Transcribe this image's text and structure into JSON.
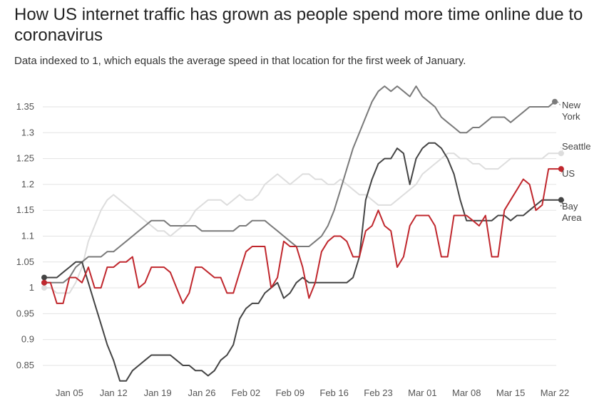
{
  "title": "How US internet traffic has grown as people spend more time online due to coronavirus",
  "subtitle": "Data indexed to 1, which equals the average speed in that location for the first week of January.",
  "chart_data": {
    "type": "line",
    "title": "How US internet traffic has grown as people spend more time online due to coronavirus",
    "subtitle": "Data indexed to 1, which equals the average speed in that location for the first week of January.",
    "xlabel": "",
    "ylabel": "",
    "x_start": "Jan 01",
    "x_end": "Mar 23",
    "xlim": [
      0,
      82
    ],
    "ylim": [
      0.8,
      1.4
    ],
    "grid": true,
    "legend": "direct labels at line ends (right)",
    "x_ticks": [
      {
        "day": 4,
        "label": "Jan 05"
      },
      {
        "day": 11,
        "label": "Jan 12"
      },
      {
        "day": 18,
        "label": "Jan 19"
      },
      {
        "day": 25,
        "label": "Jan 26"
      },
      {
        "day": 32,
        "label": "Feb 02"
      },
      {
        "day": 39,
        "label": "Feb 09"
      },
      {
        "day": 46,
        "label": "Feb 16"
      },
      {
        "day": 53,
        "label": "Feb 23"
      },
      {
        "day": 60,
        "label": "Mar 01"
      },
      {
        "day": 67,
        "label": "Mar 08"
      },
      {
        "day": 74,
        "label": "Mar 15"
      },
      {
        "day": 81,
        "label": "Mar 22"
      }
    ],
    "y_ticks": [
      {
        "value": 0.85,
        "label": "0.85"
      },
      {
        "value": 0.9,
        "label": "0.9"
      },
      {
        "value": 0.95,
        "label": "0.95"
      },
      {
        "value": 1.0,
        "label": "1"
      },
      {
        "value": 1.05,
        "label": "1.05"
      },
      {
        "value": 1.1,
        "label": "1.1"
      },
      {
        "value": 1.15,
        "label": "1.15"
      },
      {
        "value": 1.2,
        "label": "1.2"
      },
      {
        "value": 1.25,
        "label": "1.25"
      },
      {
        "value": 1.3,
        "label": "1.3"
      },
      {
        "value": 1.35,
        "label": "1.35"
      }
    ],
    "series": [
      {
        "name": "Seattle",
        "label_lines": [
          "Seattle"
        ],
        "color": "#dddddd",
        "x": [
          0,
          1,
          2,
          3,
          4,
          5,
          6,
          7,
          8,
          9,
          10,
          11,
          12,
          13,
          14,
          15,
          16,
          17,
          18,
          19,
          20,
          21,
          22,
          23,
          24,
          25,
          26,
          27,
          28,
          29,
          30,
          31,
          32,
          33,
          34,
          35,
          36,
          37,
          38,
          39,
          40,
          41,
          42,
          43,
          44,
          45,
          46,
          47,
          48,
          49,
          50,
          51,
          52,
          53,
          54,
          55,
          56,
          57,
          58,
          59,
          60,
          61,
          62,
          63,
          64,
          65,
          66,
          67,
          68,
          69,
          70,
          71,
          72,
          73,
          74,
          75,
          76,
          77,
          78,
          79,
          80,
          81,
          82
        ],
        "values": [
          1.0,
          1.0,
          0.99,
          0.99,
          0.99,
          1.01,
          1.04,
          1.09,
          1.12,
          1.15,
          1.17,
          1.18,
          1.17,
          1.16,
          1.15,
          1.14,
          1.13,
          1.12,
          1.11,
          1.11,
          1.1,
          1.11,
          1.12,
          1.13,
          1.15,
          1.16,
          1.17,
          1.17,
          1.17,
          1.16,
          1.17,
          1.18,
          1.17,
          1.17,
          1.18,
          1.2,
          1.21,
          1.22,
          1.21,
          1.2,
          1.21,
          1.22,
          1.22,
          1.21,
          1.21,
          1.2,
          1.2,
          1.21,
          1.2,
          1.19,
          1.18,
          1.18,
          1.17,
          1.16,
          1.16,
          1.16,
          1.17,
          1.18,
          1.19,
          1.2,
          1.22,
          1.23,
          1.24,
          1.25,
          1.26,
          1.26,
          1.25,
          1.25,
          1.24,
          1.24,
          1.23,
          1.23,
          1.23,
          1.24,
          1.25,
          1.25,
          1.25,
          1.25,
          1.25,
          1.25,
          1.26,
          1.26,
          1.26
        ]
      },
      {
        "name": "New York",
        "label_lines": [
          "New",
          "York"
        ],
        "color": "#7a7a7a",
        "x": [
          0,
          1,
          2,
          3,
          4,
          5,
          6,
          7,
          8,
          9,
          10,
          11,
          12,
          13,
          14,
          15,
          16,
          17,
          18,
          19,
          20,
          21,
          22,
          23,
          24,
          25,
          26,
          27,
          28,
          29,
          30,
          31,
          32,
          33,
          34,
          35,
          36,
          37,
          38,
          39,
          40,
          41,
          42,
          43,
          44,
          45,
          46,
          47,
          48,
          49,
          50,
          51,
          52,
          53,
          54,
          55,
          56,
          57,
          58,
          59,
          60,
          61,
          62,
          63,
          64,
          65,
          66,
          67,
          68,
          69,
          70,
          71,
          72,
          73,
          74,
          75,
          76,
          77,
          78,
          79,
          80,
          81
        ],
        "values": [
          1.01,
          1.01,
          1.01,
          1.01,
          1.02,
          1.04,
          1.05,
          1.06,
          1.06,
          1.06,
          1.07,
          1.07,
          1.08,
          1.09,
          1.1,
          1.11,
          1.12,
          1.13,
          1.13,
          1.13,
          1.12,
          1.12,
          1.12,
          1.12,
          1.12,
          1.11,
          1.11,
          1.11,
          1.11,
          1.11,
          1.11,
          1.12,
          1.12,
          1.13,
          1.13,
          1.13,
          1.12,
          1.11,
          1.1,
          1.09,
          1.08,
          1.08,
          1.08,
          1.09,
          1.1,
          1.12,
          1.15,
          1.19,
          1.23,
          1.27,
          1.3,
          1.33,
          1.36,
          1.38,
          1.39,
          1.38,
          1.39,
          1.38,
          1.37,
          1.39,
          1.37,
          1.36,
          1.35,
          1.33,
          1.32,
          1.31,
          1.3,
          1.3,
          1.31,
          1.31,
          1.32,
          1.33,
          1.33,
          1.33,
          1.32,
          1.33,
          1.34,
          1.35,
          1.35,
          1.35,
          1.35,
          1.36
        ]
      },
      {
        "name": "Bay Area",
        "label_lines": [
          "Bay",
          "Area"
        ],
        "color": "#444444",
        "x": [
          0,
          1,
          2,
          3,
          4,
          5,
          6,
          7,
          8,
          9,
          10,
          11,
          12,
          13,
          14,
          15,
          16,
          17,
          18,
          19,
          20,
          21,
          22,
          23,
          24,
          25,
          26,
          27,
          28,
          29,
          30,
          31,
          32,
          33,
          34,
          35,
          36,
          37,
          38,
          39,
          40,
          41,
          42,
          43,
          44,
          45,
          46,
          47,
          48,
          49,
          50,
          51,
          52,
          53,
          54,
          55,
          56,
          57,
          58,
          59,
          60,
          61,
          62,
          63,
          64,
          65,
          66,
          67,
          68,
          69,
          70,
          71,
          72,
          73,
          74,
          75,
          76,
          77,
          78,
          79,
          80,
          81,
          82
        ],
        "values": [
          1.02,
          1.02,
          1.02,
          1.03,
          1.04,
          1.05,
          1.05,
          1.01,
          0.97,
          0.93,
          0.89,
          0.86,
          0.82,
          0.82,
          0.84,
          0.85,
          0.86,
          0.87,
          0.87,
          0.87,
          0.87,
          0.86,
          0.85,
          0.85,
          0.84,
          0.84,
          0.83,
          0.84,
          0.86,
          0.87,
          0.89,
          0.94,
          0.96,
          0.97,
          0.97,
          0.99,
          1.0,
          1.01,
          0.98,
          0.99,
          1.01,
          1.02,
          1.01,
          1.01,
          1.01,
          1.01,
          1.01,
          1.01,
          1.01,
          1.02,
          1.06,
          1.17,
          1.21,
          1.24,
          1.25,
          1.25,
          1.27,
          1.26,
          1.2,
          1.25,
          1.27,
          1.28,
          1.28,
          1.27,
          1.25,
          1.22,
          1.17,
          1.13,
          1.13,
          1.13,
          1.13,
          1.13,
          1.14,
          1.14,
          1.13,
          1.14,
          1.14,
          1.15,
          1.16,
          1.17,
          1.17,
          1.17,
          1.17
        ]
      },
      {
        "name": "US",
        "label_lines": [
          "US"
        ],
        "color": "#c0272d",
        "x": [
          0,
          1,
          2,
          3,
          4,
          5,
          6,
          7,
          8,
          9,
          10,
          11,
          12,
          13,
          14,
          15,
          16,
          17,
          18,
          19,
          20,
          21,
          22,
          23,
          24,
          25,
          26,
          27,
          28,
          29,
          30,
          31,
          32,
          33,
          34,
          35,
          36,
          37,
          38,
          39,
          40,
          41,
          42,
          43,
          44,
          45,
          46,
          47,
          48,
          49,
          50,
          51,
          52,
          53,
          54,
          55,
          56,
          57,
          58,
          59,
          60,
          61,
          62,
          63,
          64,
          65,
          66,
          67,
          68,
          69,
          70,
          71,
          72,
          73,
          74,
          75,
          76,
          77,
          78,
          79,
          80,
          81,
          82
        ],
        "values": [
          1.01,
          1.01,
          0.97,
          0.97,
          1.02,
          1.02,
          1.01,
          1.04,
          1.0,
          1.0,
          1.04,
          1.04,
          1.05,
          1.05,
          1.06,
          1.0,
          1.01,
          1.04,
          1.04,
          1.04,
          1.03,
          1.0,
          0.97,
          0.99,
          1.04,
          1.04,
          1.03,
          1.02,
          1.02,
          0.99,
          0.99,
          1.03,
          1.07,
          1.08,
          1.08,
          1.08,
          1.0,
          1.02,
          1.09,
          1.08,
          1.08,
          1.04,
          0.98,
          1.01,
          1.07,
          1.09,
          1.1,
          1.1,
          1.09,
          1.06,
          1.06,
          1.11,
          1.12,
          1.15,
          1.12,
          1.11,
          1.04,
          1.06,
          1.12,
          1.14,
          1.14,
          1.14,
          1.12,
          1.06,
          1.06,
          1.14,
          1.14,
          1.14,
          1.13,
          1.12,
          1.14,
          1.06,
          1.06,
          1.15,
          1.17,
          1.19,
          1.21,
          1.2,
          1.15,
          1.16,
          1.23,
          1.23,
          1.23
        ]
      }
    ]
  }
}
